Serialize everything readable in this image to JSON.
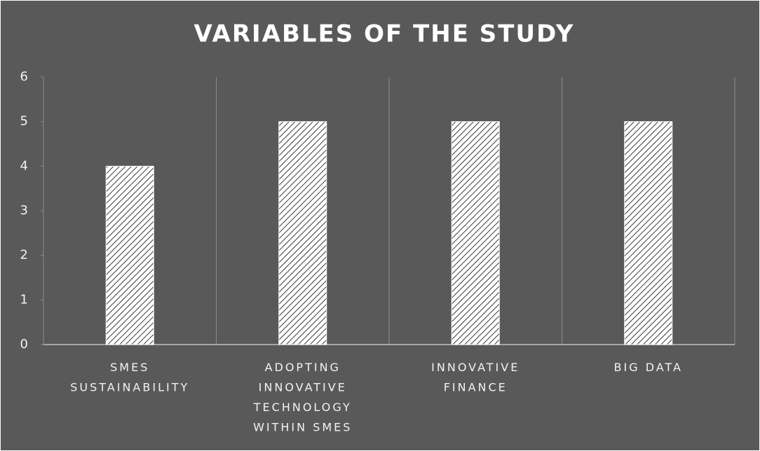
{
  "chart_data": {
    "type": "bar",
    "title": "VARIABLES OF THE STUDY",
    "categories": [
      "SMES SUSTAINABILITY",
      "ADOPTING INNOVATIVE TECHNOLOGY WITHIN SMES",
      "INNOVATIVE FINANCE",
      "BIG DATA"
    ],
    "values": [
      4,
      5,
      5,
      5
    ],
    "color": "#ffffff",
    "ylim": [
      0,
      6
    ],
    "yticks": [
      0,
      1,
      2,
      3,
      4,
      5,
      6
    ]
  }
}
